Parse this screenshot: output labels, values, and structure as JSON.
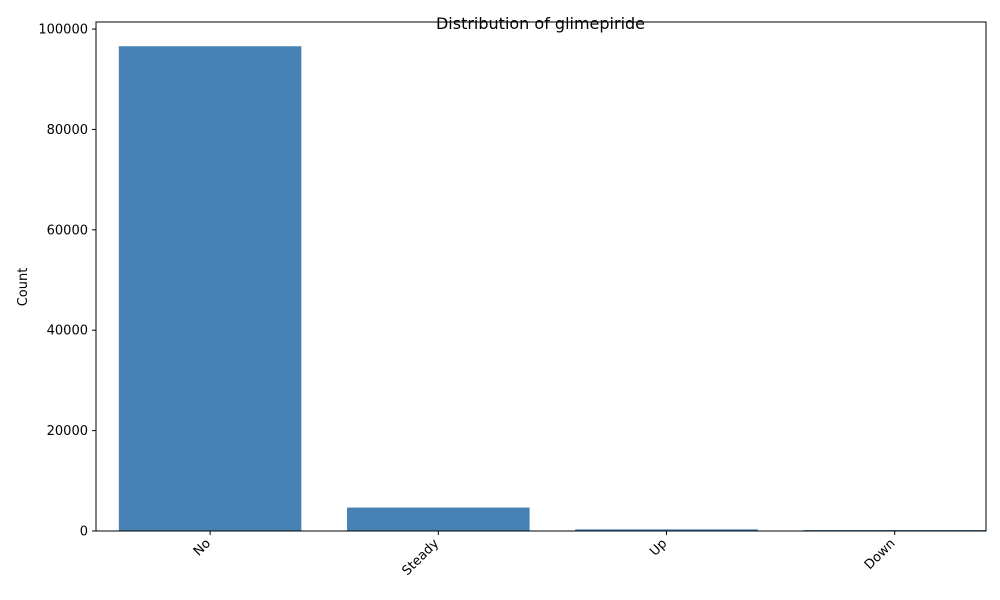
{
  "chart_data": {
    "type": "bar",
    "title": "Distribution of glimepiride",
    "xlabel": "",
    "ylabel": "Count",
    "categories": [
      "No",
      "Steady",
      "Up",
      "Down"
    ],
    "values": [
      96575,
      4670,
      327,
      194
    ],
    "ylim": [
      0,
      101404
    ],
    "yticks": [
      0,
      20000,
      40000,
      60000,
      80000,
      100000
    ],
    "ytick_labels": [
      "0",
      "20000",
      "40000",
      "60000",
      "80000",
      "100000"
    ],
    "bar_color": "#4682b4",
    "grid": false,
    "legend": "none"
  }
}
